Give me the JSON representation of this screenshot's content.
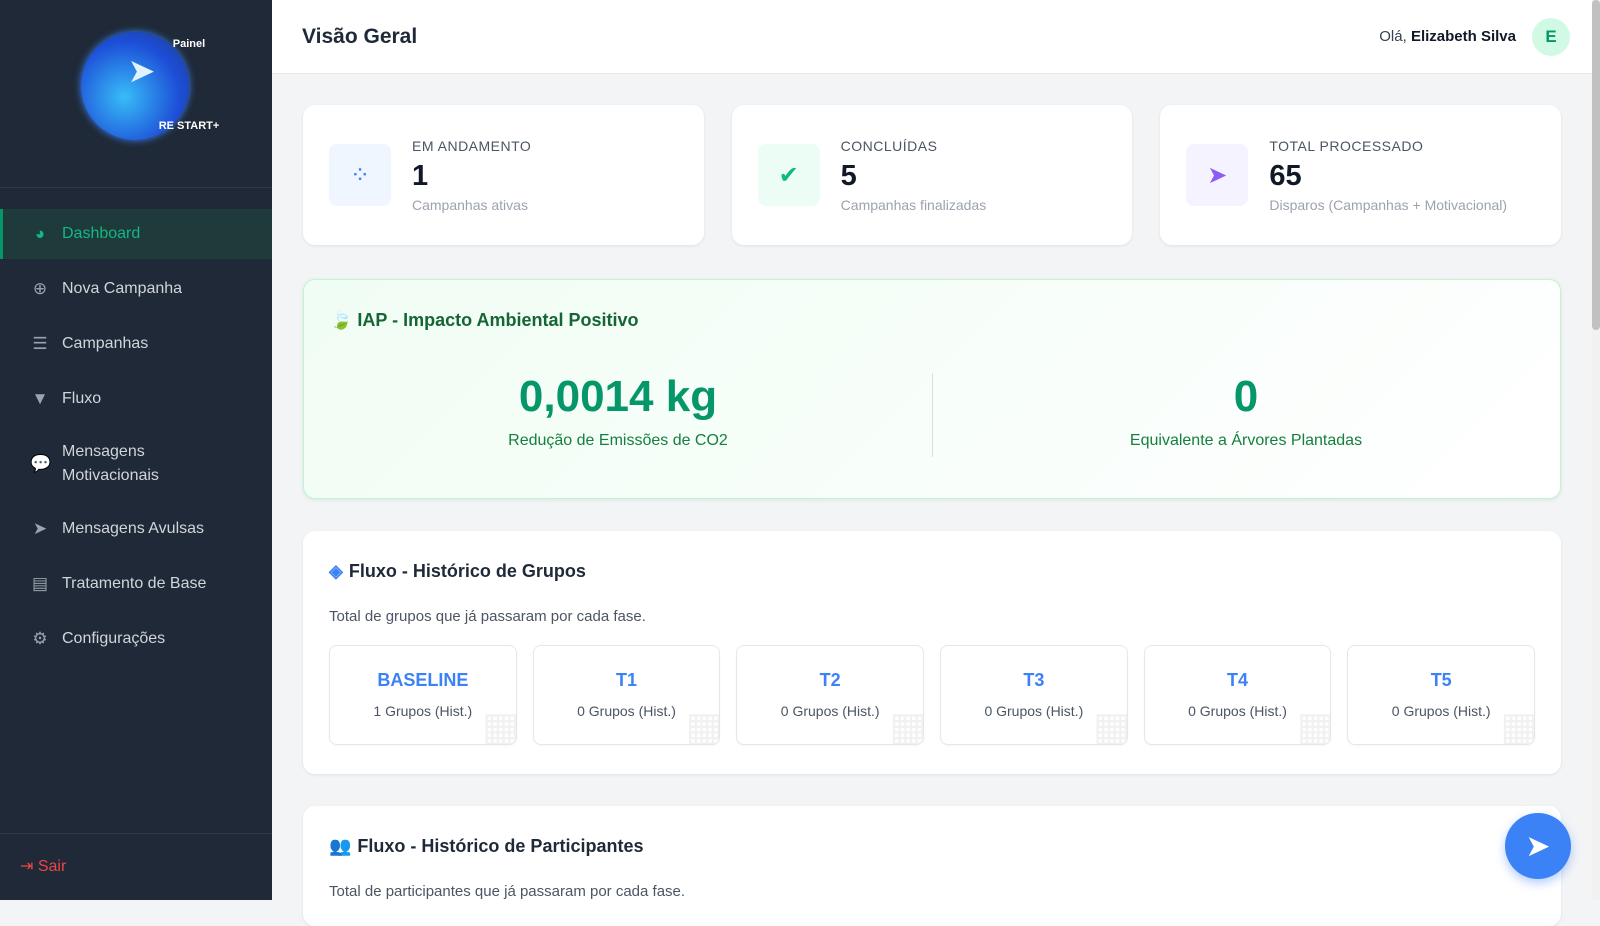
{
  "logo": {
    "top": "Painel",
    "bottom": "RE START+"
  },
  "sidebar": {
    "items": [
      {
        "label": "Dashboard",
        "icon": "chart-pie-icon",
        "active": true
      },
      {
        "label": "Nova Campanha",
        "icon": "plus-circle-icon"
      },
      {
        "label": "Campanhas",
        "icon": "list-icon"
      },
      {
        "label": "Fluxo",
        "icon": "filter-icon"
      },
      {
        "label": "Mensagens Motivacionais",
        "icon": "comments-icon"
      },
      {
        "label": "Mensagens Avulsas",
        "icon": "paper-plane-icon"
      },
      {
        "label": "Tratamento de Base",
        "icon": "file-icon"
      },
      {
        "label": "Configurações",
        "icon": "gear-icon"
      }
    ],
    "logout": "Sair"
  },
  "header": {
    "title": "Visão Geral",
    "greeting": "Olá,",
    "user": "Elizabeth Silva",
    "avatar": "E"
  },
  "stats": [
    {
      "label": "EM ANDAMENTO",
      "value": "1",
      "sub": "Campanhas ativas",
      "color": "#3b82f6"
    },
    {
      "label": "CONCLUÍDAS",
      "value": "5",
      "sub": "Campanhas finalizadas",
      "color": "#10b981"
    },
    {
      "label": "TOTAL PROCESSADO",
      "value": "65",
      "sub": "Disparos (Campanhas + Motivacional)",
      "color": "#8b5cf6"
    }
  ],
  "iap": {
    "title": "IAP - Impacto Ambiental Positivo",
    "co2_value": "0,0014 kg",
    "co2_label": "Redução de Emissões de CO2",
    "trees_value": "0",
    "trees_label": "Equivalente a Árvores Plantadas"
  },
  "groups": {
    "title": "Fluxo - Histórico de Grupos",
    "desc": "Total de grupos que já passaram por cada fase.",
    "phases": [
      {
        "name": "BASELINE",
        "count": "1 Grupos (Hist.)"
      },
      {
        "name": "T1",
        "count": "0 Grupos (Hist.)"
      },
      {
        "name": "T2",
        "count": "0 Grupos (Hist.)"
      },
      {
        "name": "T3",
        "count": "0 Grupos (Hist.)"
      },
      {
        "name": "T4",
        "count": "0 Grupos (Hist.)"
      },
      {
        "name": "T5",
        "count": "0 Grupos (Hist.)"
      }
    ]
  },
  "participants": {
    "title": "Fluxo - Histórico de Participantes",
    "desc": "Total de participantes que já passaram por cada fase."
  }
}
